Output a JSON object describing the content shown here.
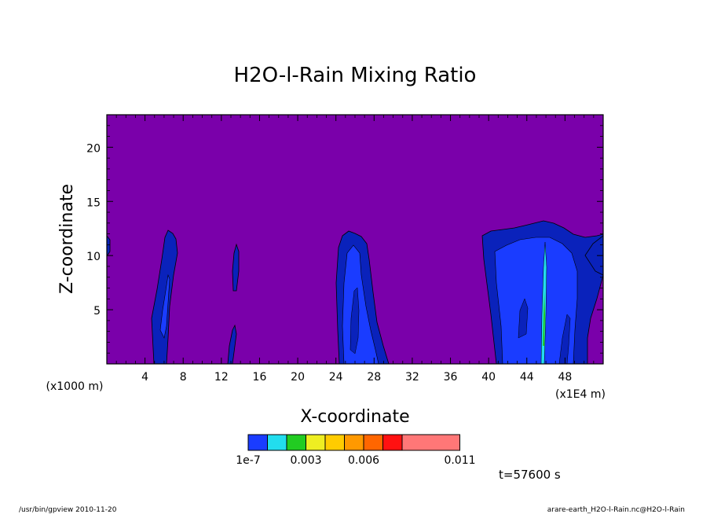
{
  "chart_data": {
    "type": "contour",
    "title": "H2O-l-Rain Mixing Ratio",
    "xlabel": "X-coordinate",
    "ylabel": "Z-coordinate",
    "x_unit_label": "(x1000 m)",
    "x_scale_label": "(x1E4 m)",
    "xlim": [
      0,
      52
    ],
    "ylim": [
      0,
      23
    ],
    "x_ticks": [
      "4",
      "8",
      "12",
      "16",
      "20",
      "24",
      "28",
      "32",
      "36",
      "40",
      "44",
      "48"
    ],
    "y_ticks": [
      "5",
      "10",
      "15",
      "20"
    ],
    "background_color": "#7a00aa",
    "time_label": "t=57600 s",
    "colorbar": {
      "colors": [
        "#1a3cff",
        "#22ddee",
        "#22cc22",
        "#eeee22",
        "#ffcc00",
        "#ff9900",
        "#ff6600",
        "#ff1111",
        "#ff7777"
      ],
      "labels": [
        "1e-7",
        "0.003",
        "0.006",
        "0.011"
      ]
    },
    "features": [
      {
        "name": "rain-column-x6",
        "x_center": 6.2,
        "z_top": 12.2
      },
      {
        "name": "rain-column-x13",
        "x_center": 13.2,
        "z_top": 10.8
      },
      {
        "name": "rain-column-x26",
        "x_center": 26.5,
        "z_top": 12.2
      },
      {
        "name": "rain-column-x45",
        "x_center": 45.0,
        "z_top": 13.0
      }
    ]
  },
  "footer": {
    "left": "/usr/bin/gpview   2010-11-20",
    "right": "arare-earth_H2O-l-Rain.nc@H2O-l-Rain"
  }
}
